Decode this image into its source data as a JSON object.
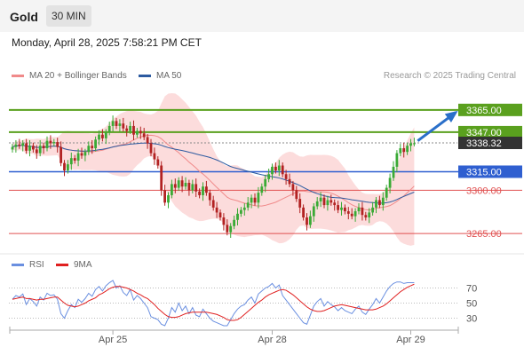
{
  "header": {
    "instrument": "Gold",
    "interval": "30 MIN"
  },
  "datetime": "Monday, April 28, 2025 7:58:21 PM CET",
  "legend": {
    "ma20_bb": "MA 20 + Bollinger Bands",
    "ma50": "MA 50",
    "credit": "Research © 2025 Trading Central"
  },
  "rsi_legend": {
    "rsi": "RSI",
    "ma9": "9MA"
  },
  "colors": {
    "bullish": "#3aaa35",
    "bearish": "#b22222",
    "bollinger_fill": "#fbd3d3",
    "ma20": "#f08a8a",
    "ma50": "#2c5aa0",
    "resistance": "#5aa01e",
    "pivot": "#2f5fd0",
    "support": "#e05050",
    "rsi": "#6a8fe0",
    "rsi_ma": "#e02020"
  },
  "chart_data": {
    "type": "candlestick",
    "ylim": [
      3250,
      3385
    ],
    "x_ticks": [
      {
        "index": 29,
        "label": "Apr 25"
      },
      {
        "index": 75,
        "label": "Apr 28"
      },
      {
        "index": 115,
        "label": "Apr 29"
      }
    ],
    "levels": [
      {
        "value": 3365.0,
        "label": "3365.00",
        "kind": "resistance"
      },
      {
        "value": 3347.0,
        "label": "3347.00",
        "kind": "resistance"
      },
      {
        "value": 3338.32,
        "label": "3338.32",
        "kind": "last"
      },
      {
        "value": 3315.0,
        "label": "3315.00",
        "kind": "pivot"
      },
      {
        "value": 3300.0,
        "label": "3300.00",
        "kind": "support"
      },
      {
        "value": 3265.0,
        "label": "3265.00",
        "kind": "support"
      }
    ],
    "arrow": {
      "from_index": 117,
      "from_value": 3340,
      "to_index": 128,
      "to_value": 3363
    },
    "close": [
      3335,
      3337,
      3336,
      3338,
      3332,
      3336,
      3333,
      3330,
      3336,
      3334,
      3340,
      3338,
      3339,
      3335,
      3322,
      3316,
      3321,
      3326,
      3324,
      3330,
      3328,
      3331,
      3336,
      3334,
      3341,
      3345,
      3342,
      3347,
      3352,
      3356,
      3352,
      3354,
      3350,
      3348,
      3352,
      3345,
      3348,
      3346,
      3343,
      3338,
      3330,
      3325,
      3320,
      3300,
      3290,
      3296,
      3305,
      3302,
      3308,
      3303,
      3306,
      3300,
      3305,
      3299,
      3296,
      3303,
      3298,
      3292,
      3286,
      3282,
      3278,
      3272,
      3266,
      3271,
      3276,
      3281,
      3284,
      3286,
      3290,
      3294,
      3290,
      3298,
      3303,
      3309,
      3313,
      3319,
      3316,
      3320,
      3313,
      3309,
      3305,
      3300,
      3293,
      3286,
      3278,
      3272,
      3279,
      3287,
      3291,
      3294,
      3288,
      3292,
      3290,
      3288,
      3284,
      3286,
      3283,
      3281,
      3279,
      3283,
      3286,
      3280,
      3278,
      3282,
      3286,
      3292,
      3288,
      3294,
      3302,
      3310,
      3319,
      3330,
      3334,
      3331,
      3336,
      3338,
      3338
    ],
    "rsi": {
      "ylim": [
        20,
        80
      ],
      "ticks": [
        70,
        50,
        30
      ],
      "values": [
        55,
        60,
        58,
        62,
        48,
        56,
        52,
        46,
        58,
        54,
        63,
        60,
        61,
        55,
        36,
        30,
        40,
        48,
        44,
        55,
        51,
        56,
        63,
        59,
        68,
        72,
        66,
        73,
        77,
        80,
        70,
        73,
        64,
        60,
        68,
        54,
        60,
        56,
        50,
        44,
        32,
        30,
        28,
        22,
        20,
        30,
        44,
        38,
        50,
        40,
        46,
        36,
        44,
        34,
        32,
        42,
        36,
        30,
        26,
        24,
        22,
        20,
        20,
        28,
        36,
        42,
        46,
        48,
        54,
        58,
        50,
        62,
        66,
        70,
        72,
        76,
        70,
        74,
        60,
        54,
        48,
        42,
        36,
        30,
        24,
        22,
        34,
        46,
        52,
        56,
        46,
        52,
        48,
        45,
        40,
        44,
        40,
        38,
        36,
        42,
        46,
        38,
        35,
        42,
        48,
        56,
        50,
        58,
        66,
        72,
        76,
        78,
        78,
        76,
        77,
        77,
        77
      ],
      "ma": [
        55,
        56,
        57,
        58,
        56,
        56,
        55,
        54,
        55,
        55,
        56,
        57,
        58,
        58,
        54,
        50,
        47,
        46,
        45,
        46,
        48,
        50,
        53,
        55,
        57,
        61,
        63,
        66,
        69,
        71,
        72,
        72,
        71,
        70,
        68,
        66,
        63,
        61,
        58,
        56,
        52,
        48,
        43,
        39,
        35,
        32,
        31,
        31,
        32,
        34,
        36,
        37,
        38,
        38,
        38,
        38,
        38,
        37,
        36,
        35,
        33,
        31,
        28,
        27,
        27,
        28,
        31,
        35,
        39,
        43,
        47,
        51,
        54,
        58,
        61,
        63,
        65,
        67,
        68,
        67,
        64,
        61,
        57,
        53,
        49,
        45,
        42,
        40,
        39,
        39,
        40,
        42,
        44,
        46,
        47,
        48,
        47,
        46,
        45,
        44,
        43,
        42,
        41,
        41,
        41,
        42,
        44,
        46,
        49,
        53,
        57,
        61,
        65,
        68,
        71,
        73,
        75
      ]
    }
  }
}
